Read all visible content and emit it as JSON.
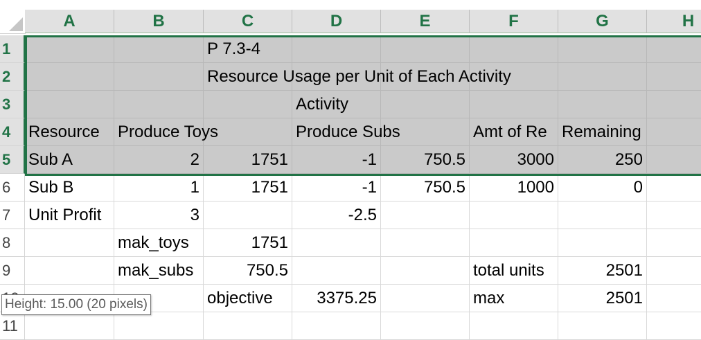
{
  "columns": [
    "A",
    "B",
    "C",
    "D",
    "E",
    "F",
    "G",
    "H"
  ],
  "rows": [
    "1",
    "2",
    "3",
    "4",
    "5",
    "6",
    "7",
    "8",
    "9",
    "10",
    "11"
  ],
  "cells": {
    "C1": "P 7.3-4",
    "C2": "Resource Usage per Unit of Each Activity",
    "D3": "Activity",
    "A4": "Resource",
    "B4": "Produce Toys",
    "D4": "Produce Subs",
    "F4": "Amt of Re",
    "G4": "Remaining",
    "A5": "Sub A",
    "B5": "2",
    "C5": "1751",
    "D5": "-1",
    "E5": "750.5",
    "F5": "3000",
    "G5": "250",
    "A6": "Sub B",
    "B6": "1",
    "C6": "1751",
    "D6": "-1",
    "E6": "750.5",
    "F6": "1000",
    "G6": "0",
    "A7": "Unit Profit",
    "B7": "3",
    "D7": "-2.5",
    "B8": "mak_toys",
    "C8": "1751",
    "B9": "mak_subs",
    "C9": "750.5",
    "F9": "total units",
    "G9": "2501",
    "C10": "objective",
    "D10": "3375.25",
    "F10": "max",
    "G10": "2501"
  },
  "tooltip": "Height: 15.00 (20 pixels)",
  "selection": {
    "range": "A1:H5"
  },
  "colors": {
    "accent": "#217346",
    "selected_fill": "#cacaca",
    "header_fill": "#e1e1e1"
  }
}
